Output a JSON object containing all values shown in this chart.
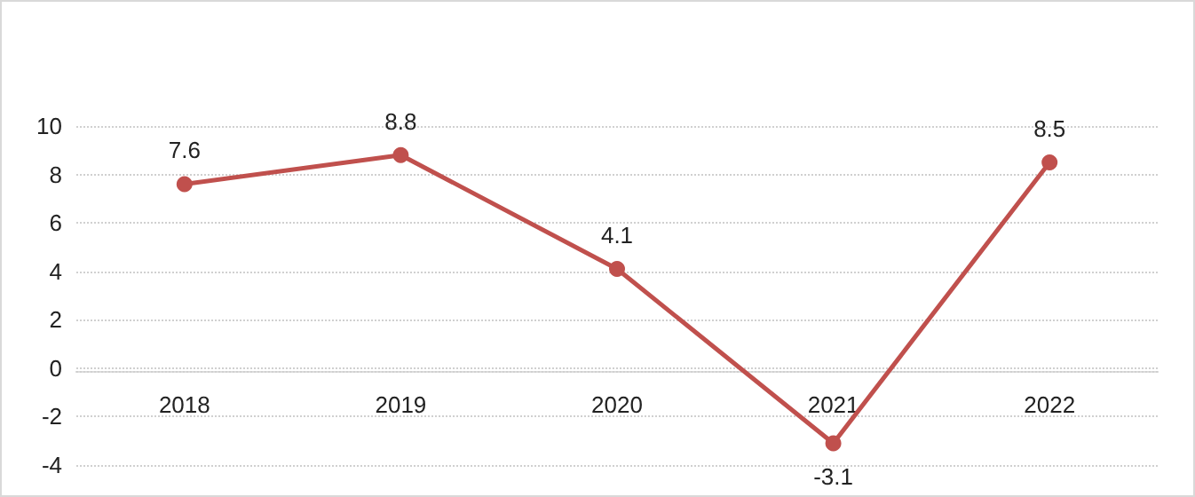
{
  "chart_data": {
    "type": "line",
    "categories": [
      "2018",
      "2019",
      "2020",
      "2021",
      "2022"
    ],
    "series": [
      {
        "color": "#c0504d",
        "values": [
          7.6,
          8.8,
          4.1,
          -3.1,
          8.5
        ]
      }
    ],
    "ylim": [
      -4,
      10
    ],
    "yticks": [
      -4,
      -2,
      0,
      2,
      4,
      6,
      8,
      10
    ],
    "grid": "y",
    "marker": "circle",
    "line_style": "solid",
    "data_labels": true
  }
}
